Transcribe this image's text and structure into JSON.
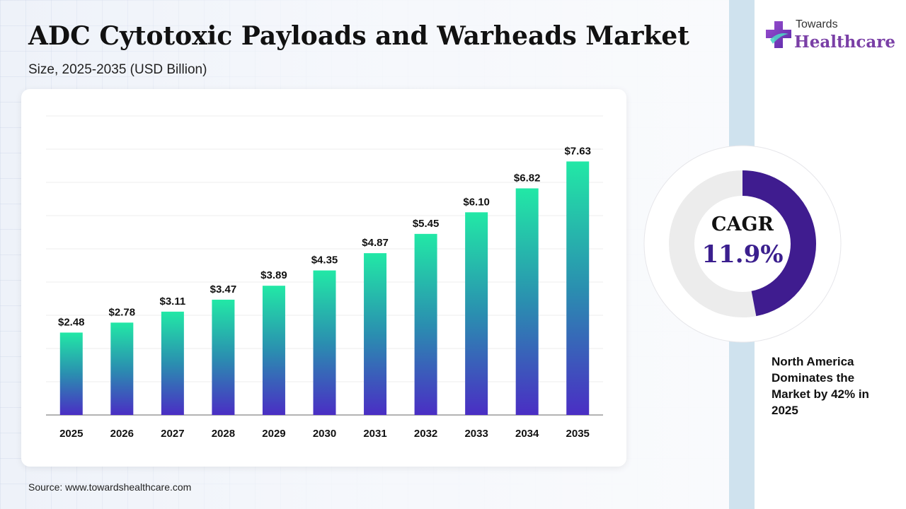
{
  "header": {
    "title": "ADC Cytotoxic Payloads and Warheads Market",
    "subtitle": "Size, 2025-2035 (USD Billion)"
  },
  "logo": {
    "small_text": "Towards",
    "big_text": "Healthcare"
  },
  "chart_data": {
    "type": "bar",
    "categories": [
      "2025",
      "2026",
      "2027",
      "2028",
      "2029",
      "2030",
      "2031",
      "2032",
      "2033",
      "2034",
      "2035"
    ],
    "values": [
      2.48,
      2.78,
      3.11,
      3.47,
      3.89,
      4.35,
      4.87,
      5.45,
      6.1,
      6.82,
      7.63
    ],
    "data_labels": [
      "$2.48",
      "$2.78",
      "$3.11",
      "$3.47",
      "$3.89",
      "$4.35",
      "$4.87",
      "$5.45",
      "$6.10",
      "$6.82",
      "$7.63"
    ],
    "ylim": [
      0,
      9
    ],
    "grid": true,
    "bar_gradient": {
      "top": "#22e8a6",
      "middle": "#2a8fb0",
      "bottom": "#4a2ec4"
    }
  },
  "cagr": {
    "label": "CAGR",
    "value": "11.9%",
    "fraction": 0.47,
    "ring_color": "#3f1c8f",
    "track_color": "#ececec"
  },
  "note": "North America Dominates the Market by 42% in 2025",
  "source": "Source: www.towardshealthcare.com"
}
